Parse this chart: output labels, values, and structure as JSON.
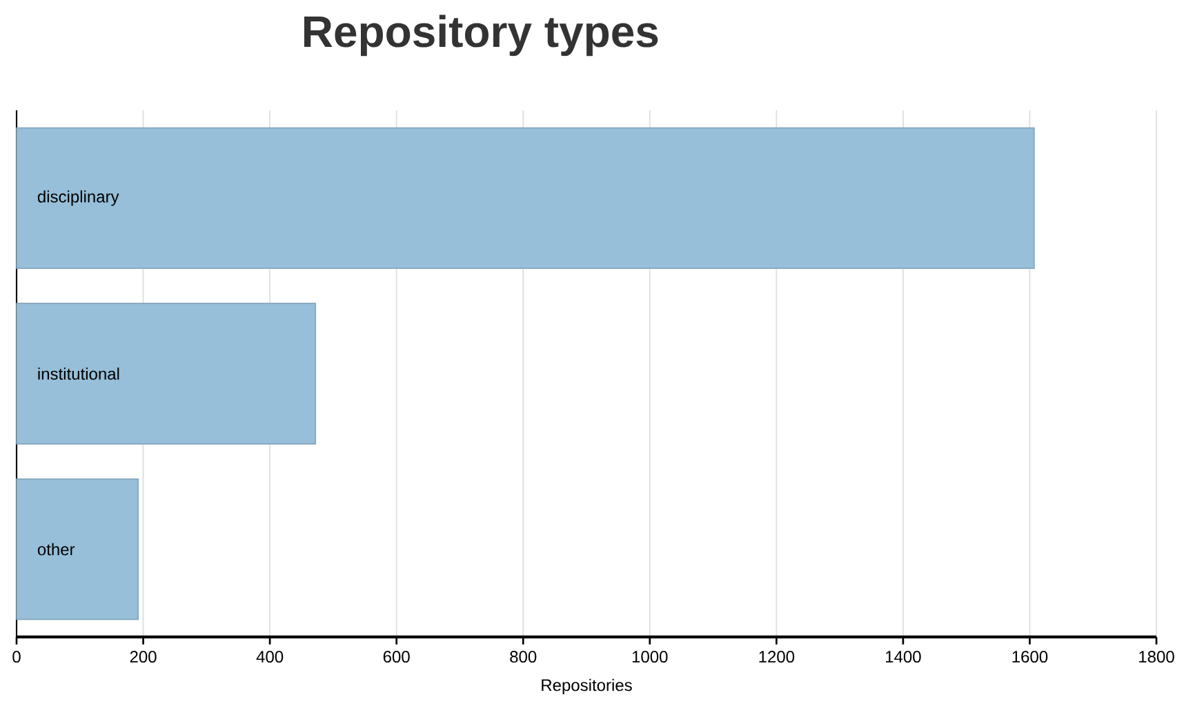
{
  "chart_data": {
    "type": "bar",
    "orientation": "horizontal",
    "title": "Repository types",
    "xlabel": "Repositories",
    "categories": [
      "disciplinary",
      "institutional",
      "other"
    ],
    "values": [
      1607,
      472,
      192
    ],
    "color": "#97bfd9",
    "xlim": [
      0,
      1800
    ],
    "xticks": [
      0,
      200,
      400,
      600,
      800,
      1000,
      1200,
      1400,
      1600,
      1800
    ],
    "grid": "x",
    "legend": false
  }
}
